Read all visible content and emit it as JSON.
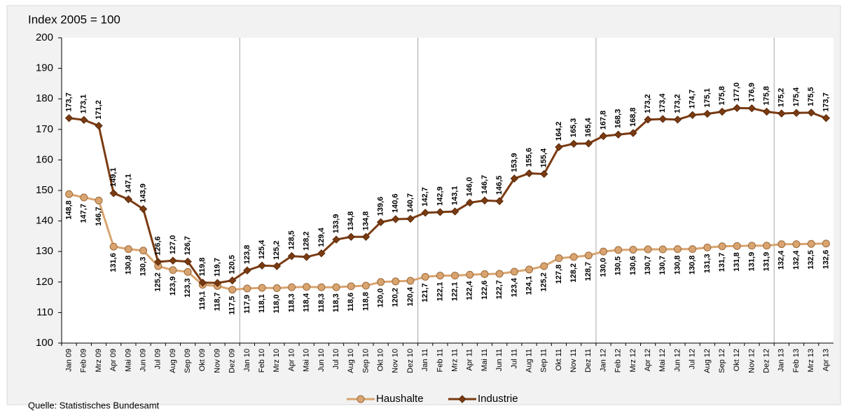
{
  "chart_data": {
    "type": "line",
    "y_axis_label": "Index 2005 = 100",
    "source": "Quelle: Statistisches Bundesamt",
    "categories": [
      "Jan 09",
      "Feb 09",
      "Mrz 09",
      "Apr 09",
      "Mai 09",
      "Jun 09",
      "Jul 09",
      "Aug 09",
      "Sep 09",
      "Okt 09",
      "Nov 09",
      "Dez 09",
      "Jan 10",
      "Feb 10",
      "Mrz 10",
      "Apr 10",
      "Mai 10",
      "Jun 10",
      "Jul 10",
      "Aug 10",
      "Sep 10",
      "Okt 10",
      "Nov 10",
      "Dez 10",
      "Jan 11",
      "Feb 11",
      "Mrz 11",
      "Apr 11",
      "Mai 11",
      "Jun 11",
      "Jul 11",
      "Aug 11",
      "Sep 11",
      "Okt 11",
      "Nov 11",
      "Dez 11",
      "Jan 12",
      "Feb 12",
      "Mrz 12",
      "Apr 12",
      "Mai 12",
      "Jun 12",
      "Jul 12",
      "Aug 12",
      "Sep 12",
      "Okt 12",
      "Nov 12",
      "Dez 12",
      "Jan 13",
      "Feb 13",
      "Mrz 13",
      "Apr 13"
    ],
    "series": [
      {
        "name": "Haushalte",
        "color": "#d9a46f",
        "marker": "circle",
        "label_position": "below",
        "values": [
          148.8,
          147.7,
          146.7,
          131.6,
          130.8,
          130.3,
          125.2,
          123.9,
          123.3,
          119.1,
          118.7,
          117.5,
          117.9,
          118.1,
          118.0,
          118.3,
          118.4,
          118.3,
          118.3,
          118.6,
          118.8,
          120.0,
          120.2,
          120.4,
          121.7,
          122.1,
          122.1,
          122.4,
          122.6,
          122.7,
          123.4,
          124.1,
          125.2,
          127.8,
          128.2,
          128.7,
          130.0,
          130.5,
          130.6,
          130.7,
          130.7,
          130.8,
          130.8,
          131.3,
          131.7,
          131.8,
          131.9,
          131.9,
          132.4,
          132.4,
          132.5,
          132.6
        ],
        "value_labels": [
          "148,8",
          "147,7",
          "146,7",
          "131,6",
          "130,8",
          "130,3",
          "125,2",
          "123,9",
          "123,3",
          "119,1",
          "118,7",
          "117,5",
          "117,9",
          "118,1",
          "118,0",
          "118,3",
          "118,4",
          "118,3",
          "118,3",
          "118,6",
          "118,8",
          "120,0",
          "120,2",
          "120,4",
          "121,7",
          "122,1",
          "122,1",
          "122,4",
          "122,6",
          "122,7",
          "123,4",
          "124,1",
          "125,2",
          "127,8",
          "128,2",
          "128,7",
          "130,0",
          "130,5",
          "130,6",
          "130,7",
          "130,7",
          "130,8",
          "130,8",
          "131,3",
          "131,7",
          "131,8",
          "131,9",
          "131,9",
          "132,4",
          "132,4",
          "132,5",
          "132,6"
        ]
      },
      {
        "name": "Industrie",
        "color": "#7a3b12",
        "marker": "diamond",
        "label_position": "above",
        "values": [
          173.7,
          173.1,
          171.2,
          149.1,
          147.1,
          143.9,
          126.6,
          127.0,
          126.7,
          119.8,
          119.7,
          120.5,
          123.8,
          125.4,
          125.2,
          128.5,
          128.2,
          129.4,
          133.9,
          134.8,
          134.8,
          139.6,
          140.6,
          140.7,
          142.7,
          142.9,
          143.1,
          146.0,
          146.7,
          146.5,
          153.9,
          155.6,
          155.4,
          164.2,
          165.3,
          165.4,
          167.8,
          168.3,
          168.8,
          173.2,
          173.4,
          173.2,
          174.7,
          175.1,
          175.8,
          177.0,
          176.9,
          175.8,
          175.2,
          175.4,
          175.5,
          173.7
        ],
        "value_labels": [
          "173,7",
          "173,1",
          "171,2",
          "149,1",
          "147,1",
          "143,9",
          "126,6",
          "127,0",
          "126,7",
          "119,8",
          "119,7",
          "120,5",
          "123,8",
          "125,4",
          "125,2",
          "128,5",
          "128,2",
          "129,4",
          "133,9",
          "134,8",
          "134,8",
          "139,6",
          "140,6",
          "140,7",
          "142,7",
          "142,9",
          "143,1",
          "146,0",
          "146,7",
          "146,5",
          "153,9",
          "155,6",
          "155,4",
          "164,2",
          "165,3",
          "165,4",
          "167,8",
          "168,3",
          "168,8",
          "173,2",
          "173,4",
          "173,2",
          "174,7",
          "175,1",
          "175,8",
          "177,0",
          "176,9",
          "175,8",
          "175,2",
          "175,4",
          "175,5",
          "173,7"
        ]
      }
    ],
    "ylim": [
      100,
      200
    ],
    "yticks": [
      100,
      110,
      120,
      130,
      140,
      150,
      160,
      170,
      180,
      190,
      200
    ],
    "grid": false,
    "legend": "bottom"
  }
}
